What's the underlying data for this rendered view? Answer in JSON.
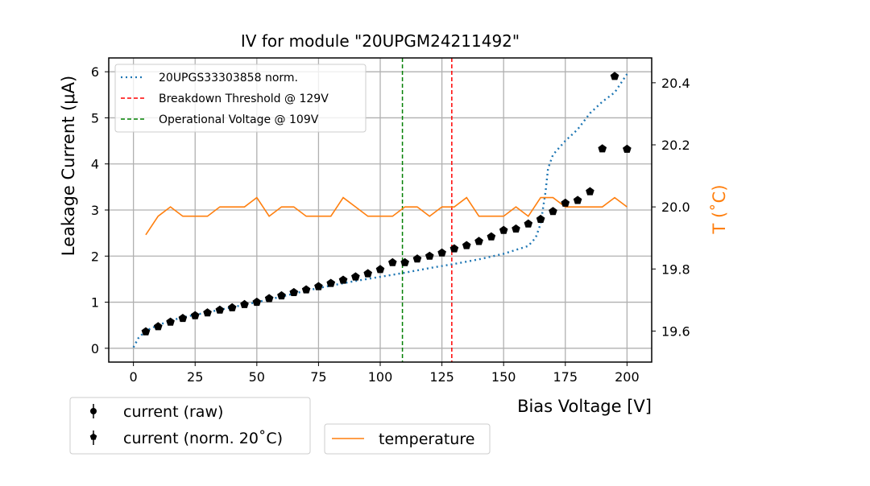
{
  "chart_data": {
    "type": "scatter",
    "title": "IV for module \"20UPGM24211492\"",
    "xlabel": "Bias Voltage [V]",
    "ylabel": "Leakage Current (μA)",
    "y2label": "T ($^\\circ$C)",
    "y2label_display": "T (˚C)",
    "xlim": [
      -10,
      210
    ],
    "ylim": [
      -0.3,
      6.3
    ],
    "y2lim": [
      19.5,
      20.48
    ],
    "xticks": [
      0,
      25,
      50,
      75,
      100,
      125,
      150,
      175,
      200
    ],
    "yticks": [
      0,
      1,
      2,
      3,
      4,
      5,
      6
    ],
    "y2ticks": [
      "19.6",
      "19.8",
      "20.0",
      "20.2",
      "20.4"
    ],
    "grid": true,
    "x": [
      5,
      10,
      15,
      20,
      25,
      30,
      35,
      40,
      45,
      50,
      55,
      60,
      65,
      70,
      75,
      80,
      85,
      90,
      95,
      100,
      105,
      110,
      115,
      120,
      125,
      130,
      135,
      140,
      145,
      150,
      155,
      160,
      165,
      170,
      175,
      180,
      185,
      190,
      195,
      200
    ],
    "series": [
      {
        "name": "current (norm. 20˚C)",
        "style": "pentagon-markers",
        "color": "#000000",
        "values": [
          0.36,
          0.47,
          0.57,
          0.65,
          0.71,
          0.77,
          0.83,
          0.88,
          0.95,
          1.0,
          1.08,
          1.14,
          1.21,
          1.27,
          1.34,
          1.41,
          1.48,
          1.55,
          1.62,
          1.71,
          1.86,
          1.86,
          1.94,
          2.0,
          2.07,
          2.16,
          2.23,
          2.32,
          2.42,
          2.56,
          2.59,
          2.7,
          2.8,
          2.97,
          3.15,
          3.21,
          3.4,
          4.33,
          5.9,
          4.32
        ]
      },
      {
        "name": "20UPGS33303858 norm.",
        "style": "dotted",
        "color": "#1f77b4",
        "x": [
          0,
          2,
          5,
          10,
          15,
          20,
          30,
          40,
          50,
          60,
          70,
          80,
          90,
          100,
          110,
          120,
          130,
          140,
          150,
          160,
          163,
          165,
          167,
          168,
          170,
          175,
          180,
          185,
          190,
          195,
          200
        ],
        "values": [
          0.02,
          0.22,
          0.38,
          0.5,
          0.6,
          0.67,
          0.78,
          0.89,
          1.0,
          1.12,
          1.25,
          1.36,
          1.46,
          1.55,
          1.64,
          1.74,
          1.83,
          1.93,
          2.05,
          2.22,
          2.4,
          2.7,
          3.4,
          3.9,
          4.2,
          4.5,
          4.75,
          5.1,
          5.35,
          5.55,
          5.95
        ]
      },
      {
        "name": "temperature",
        "style": "line",
        "axis": "right",
        "color": "#ff7f0e",
        "values": [
          19.91,
          19.97,
          20.0,
          19.97,
          19.97,
          19.97,
          20.0,
          20.0,
          20.0,
          20.03,
          19.97,
          20.0,
          20.0,
          19.97,
          19.97,
          19.97,
          20.03,
          20.0,
          19.97,
          19.97,
          19.97,
          20.0,
          20.0,
          19.97,
          20.0,
          20.0,
          20.03,
          19.97,
          19.97,
          19.97,
          20.0,
          19.97,
          20.03,
          20.03,
          20.0,
          20.0,
          20.0,
          20.0,
          20.03,
          20.0
        ]
      }
    ],
    "vlines": [
      {
        "name": "Breakdown Threshold @ 129V",
        "x": 129,
        "color": "#ff0000",
        "style": "dashed"
      },
      {
        "name": "Operational Voltage @ 109V",
        "x": 109,
        "color": "#008000",
        "style": "dashed"
      }
    ],
    "legend_top": {
      "placement": "top-left",
      "entries": [
        {
          "label": "20UPGS33303858 norm.",
          "color": "#1f77b4",
          "style": "dotted"
        },
        {
          "label": "Breakdown Threshold @ 129V",
          "color": "#ff0000",
          "style": "dashed"
        },
        {
          "label": "Operational Voltage @ 109V",
          "color": "#008000",
          "style": "dashed"
        }
      ]
    },
    "legend_bottom_left": {
      "placement": "below-left",
      "entries": [
        {
          "label": "current (raw)",
          "marker": "circle-errorbar"
        },
        {
          "label": "current (norm. 20˚C)",
          "marker": "pentagon-errorbar"
        }
      ]
    },
    "legend_bottom_right": {
      "placement": "below-center",
      "entries": [
        {
          "label": "temperature",
          "color": "#ff7f0e",
          "style": "line"
        }
      ]
    }
  }
}
